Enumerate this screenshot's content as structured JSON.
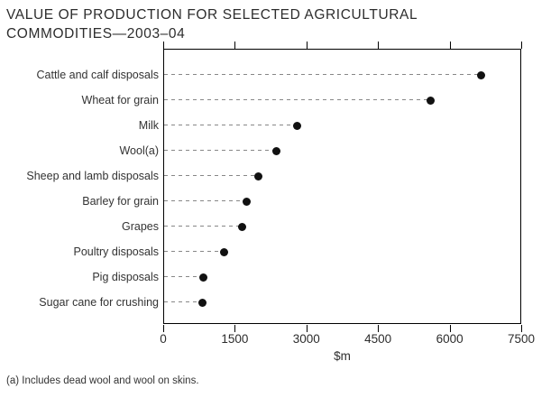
{
  "header": {
    "title_lines": [
      "VALUE OF PRODUCTION FOR SELECTED AGRICULTURAL",
      "COMMODITIES—2003–04"
    ]
  },
  "chart_data": {
    "type": "scatter",
    "subtype": "horizontal-dot-plot",
    "title": "VALUE OF PRODUCTION FOR SELECTED AGRICULTURAL COMMODITIES—2003–04",
    "categories": [
      "Cattle and calf disposals",
      "Wheat for grain",
      "Milk",
      "Wool(a)",
      "Sheep and lamb disposals",
      "Barley for grain",
      "Grapes",
      "Poultry disposals",
      "Pig disposals",
      "Sugar cane for crushing"
    ],
    "values": [
      6650,
      5600,
      2800,
      2370,
      2000,
      1740,
      1660,
      1270,
      850,
      830
    ],
    "xlabel": "$m",
    "xlim": [
      0,
      7500
    ],
    "xticks": [
      0,
      1500,
      3000,
      4500,
      6000,
      7500
    ],
    "legend": "none",
    "grid": "dashed leader line from axis to each dot",
    "marker_color": "#111111",
    "leader_line_color": "#878787",
    "frame_color": "#000000"
  },
  "footnote": {
    "text": "(a) Includes dead wool and wool on skins."
  }
}
